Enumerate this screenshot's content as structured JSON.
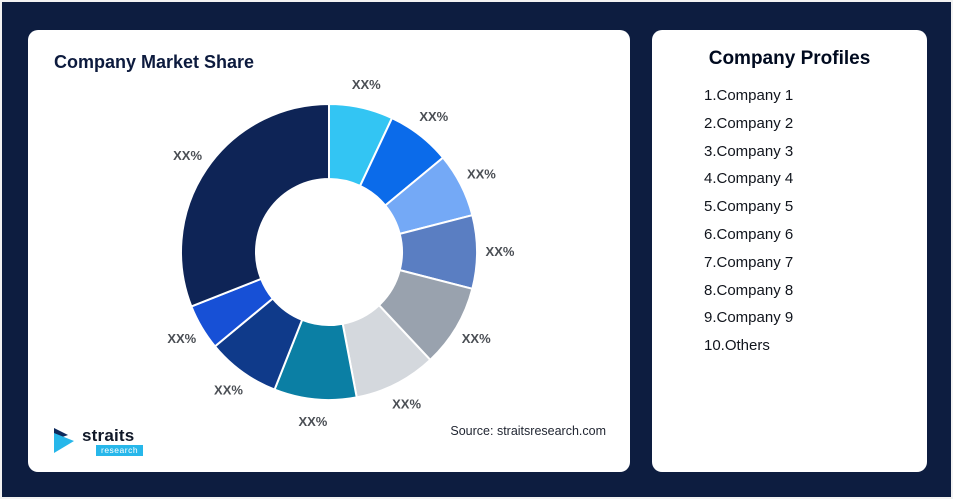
{
  "colors": {
    "background": "#0d1d40",
    "card": "#ffffff",
    "accent_cyan": "#27b7ea",
    "title_navy": "#0d1b3e",
    "slice_label": "#4a4e54"
  },
  "left_card": {
    "title": "Company Market Share",
    "source": "Source: straitsresearch.com",
    "logo": {
      "name": "straits",
      "sub": "research"
    }
  },
  "right_card": {
    "title": "Company Profiles",
    "items": [
      "1.Company 1",
      "2.Company 2",
      "3.Company 3",
      "4.Company 4",
      "5.Company 5",
      "6.Company 6",
      "7.Company 7",
      "8.Company 8",
      "9.Company 9",
      "10.Others"
    ]
  },
  "chart_data": {
    "type": "pie",
    "subtype": "donut",
    "title": "Company Market Share",
    "categories": [
      "Company 1",
      "Company 2",
      "Company 3",
      "Company 4",
      "Company 5",
      "Company 6",
      "Company 7",
      "Company 8",
      "Company 9",
      "Others"
    ],
    "values": [
      7,
      7,
      7,
      8,
      9,
      9,
      9,
      8,
      5,
      31
    ],
    "slice_labels": [
      "XX%",
      "XX%",
      "XX%",
      "XX%",
      "XX%",
      "XX%",
      "XX%",
      "XX%",
      "XX%",
      "XX%"
    ],
    "colors": [
      "#33c5f3",
      "#0b6bea",
      "#74a9f6",
      "#5a7ec2",
      "#99a2ae",
      "#d4d8dd",
      "#0b7fa4",
      "#0f3a8a",
      "#1750d6",
      "#0e2456"
    ],
    "start_angle_deg": 0,
    "direction": "clockwise",
    "legend": "none",
    "source": "Source: straitsresearch.com"
  }
}
